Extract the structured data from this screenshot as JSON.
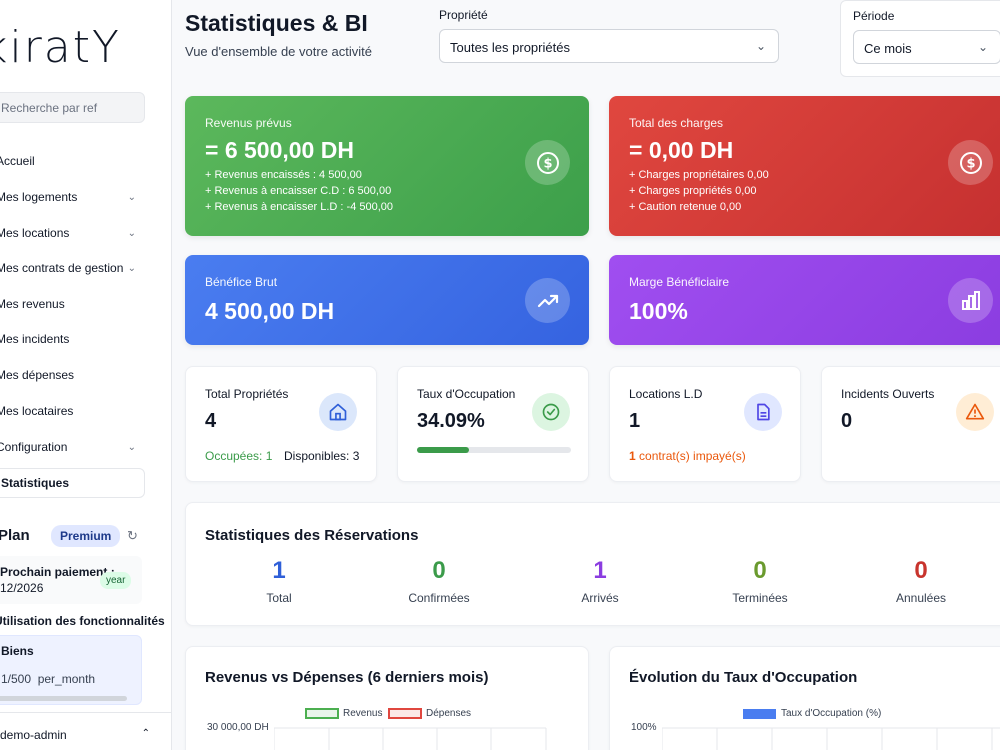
{
  "sidebar": {
    "logo": "kiratY",
    "search_placeholder": "Recherche par ref",
    "items": [
      {
        "label": "Accueil",
        "chevron": false
      },
      {
        "label": "Mes logements",
        "chevron": true
      },
      {
        "label": "Mes locations",
        "chevron": true
      },
      {
        "label": "Mes contrats de gestion",
        "chevron": true
      },
      {
        "label": "Mes revenus",
        "chevron": false
      },
      {
        "label": "Mes incidents",
        "chevron": false
      },
      {
        "label": "Mes dépenses",
        "chevron": false
      },
      {
        "label": "Mes locataires",
        "chevron": false
      },
      {
        "label": "Configuration",
        "chevron": true
      },
      {
        "label": "Statistiques",
        "chevron": false
      }
    ],
    "plan": {
      "title": "Plan",
      "badge": "Premium",
      "payment_label": "Prochain paiement :",
      "payment_date": "12/2026",
      "payment_badge": "year",
      "features_title": "Utilisation des fonctionnalités",
      "feature_name": "Biens",
      "feature_value": "1/500",
      "feature_unit": "per_month"
    },
    "user": "demo-admin"
  },
  "header": {
    "title": "Statistiques & BI",
    "subtitle": "Vue d'ensemble de votre activité",
    "property_label": "Propriété",
    "property_value": "Toutes les propriétés",
    "period_label": "Période",
    "period_value": "Ce mois"
  },
  "kpis": {
    "revenus": {
      "label": "Revenus prévus",
      "value": "= 6 500,00 DH",
      "lines": [
        "+ Revenus encaissés : 4 500,00",
        "+ Revenus à encaisser C.D : 6 500,00",
        "+ Revenus à encaisser L.D : -4 500,00"
      ],
      "icon": "dollar-icon"
    },
    "charges": {
      "label": "Total des charges",
      "value": "= 0,00 DH",
      "lines": [
        "+ Charges propriétaires 0,00",
        "+ Charges propriétés 0,00",
        "+ Caution retenue 0,00"
      ],
      "icon": "dollar-icon"
    },
    "benefice": {
      "label": "Bénéfice Brut",
      "value": "4 500,00 DH",
      "icon": "trending-up-icon"
    },
    "marge": {
      "label": "Marge Bénéficiaire",
      "value": "100%",
      "icon": "bar-chart-icon"
    }
  },
  "stats": {
    "proprietes": {
      "label": "Total Propriétés",
      "value": "4",
      "occupees": "Occupées: 1",
      "disponibles": "Disponibles: 3",
      "icon": "home-icon"
    },
    "occupation": {
      "label": "Taux d'Occupation",
      "value": "34.09%",
      "progress": 0.3409,
      "icon": "check-circle-icon"
    },
    "locations": {
      "label": "Locations L.D",
      "value": "1",
      "unpaid_count": "1",
      "unpaid_text": "contrat(s) impayé(s)",
      "icon": "document-icon"
    },
    "incidents": {
      "label": "Incidents Ouverts",
      "value": "0",
      "icon": "warning-icon"
    }
  },
  "reservations": {
    "title": "Statistiques des Réservations",
    "items": [
      {
        "value": "1",
        "label": "Total",
        "color": "#2f5fd8"
      },
      {
        "value": "0",
        "label": "Confirmées",
        "color": "#3b9b4a"
      },
      {
        "value": "1",
        "label": "Arrivés",
        "color": "#8b3de0"
      },
      {
        "value": "0",
        "label": "Terminées",
        "color": "#6a9a2e"
      },
      {
        "value": "0",
        "label": "Annulées",
        "color": "#c8342d"
      }
    ]
  },
  "colors": {
    "green": "#3c9f4a",
    "red": "#c53030",
    "blue": "#3563e0",
    "purple": "#8b3de0",
    "orange": "#ea580c"
  },
  "chart_data": [
    {
      "type": "line",
      "title": "Revenus vs Dépenses (6 derniers mois)",
      "series": [
        {
          "name": "Revenus"
        },
        {
          "name": "Dépenses"
        }
      ],
      "ytick_top": "30 000,00 DH"
    },
    {
      "type": "bar",
      "title": "Évolution du Taux d'Occupation",
      "series": [
        {
          "name": "Taux d'Occupation (%)"
        }
      ],
      "ytick_top": "100%"
    }
  ]
}
